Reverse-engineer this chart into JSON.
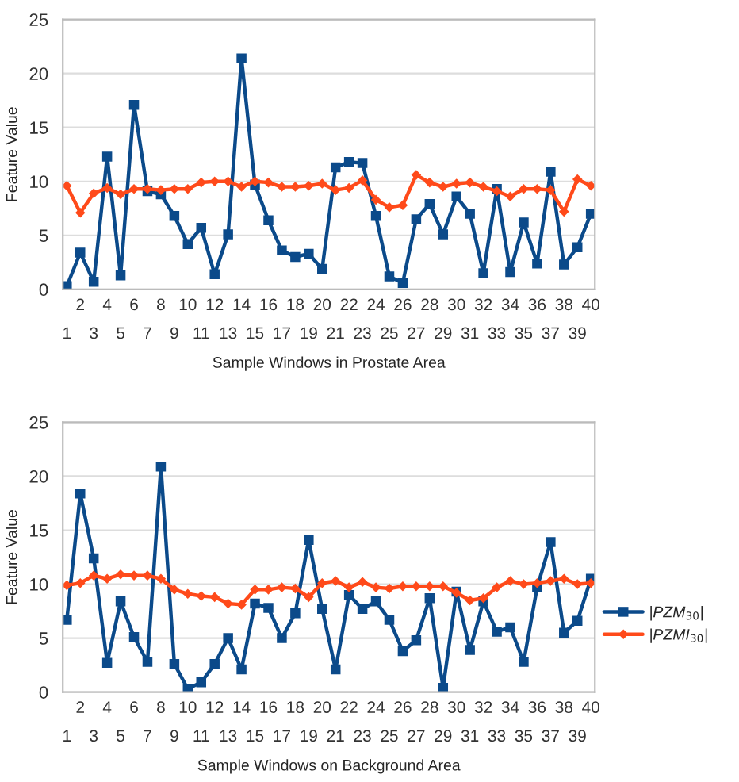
{
  "chart_data": [
    {
      "type": "line",
      "xlabel": "Sample Windows in Prostate Area",
      "ylabel": "Feature Value",
      "categories": [
        "1",
        "2",
        "3",
        "4",
        "5",
        "6",
        "7",
        "8",
        "9",
        "10",
        "11",
        "12",
        "13",
        "14",
        "15",
        "16",
        "17",
        "18",
        "19",
        "20",
        "21",
        "22",
        "23",
        "24",
        "25",
        "26",
        "27",
        "28",
        "29",
        "30",
        "31",
        "32",
        "33",
        "34",
        "35",
        "36",
        "37",
        "38",
        "39",
        "40"
      ],
      "ylim": [
        0,
        25
      ],
      "yticks": [
        0,
        5,
        10,
        15,
        20,
        25
      ],
      "grid": "y",
      "legend": false,
      "series": [
        {
          "color": "#0b4a8a",
          "marker": "square",
          "values": [
            0.3,
            3.4,
            0.7,
            12.3,
            1.3,
            17.1,
            9.1,
            8.8,
            6.8,
            4.2,
            5.7,
            1.4,
            5.1,
            21.4,
            9.7,
            6.4,
            3.6,
            3.0,
            3.3,
            1.9,
            11.3,
            11.8,
            11.7,
            6.8,
            1.2,
            0.6,
            6.5,
            7.9,
            5.1,
            8.6,
            7.0,
            1.5,
            9.3,
            1.6,
            6.2,
            2.4,
            10.9,
            2.3,
            3.9,
            7.0
          ]
        },
        {
          "color": "#ff4a1a",
          "marker": "diamond",
          "values": [
            9.6,
            7.1,
            8.9,
            9.4,
            8.8,
            9.3,
            9.3,
            9.2,
            9.3,
            9.3,
            9.9,
            10.0,
            10.0,
            9.5,
            10.0,
            9.9,
            9.5,
            9.5,
            9.6,
            9.8,
            9.2,
            9.4,
            10.1,
            8.3,
            7.6,
            7.8,
            10.6,
            9.9,
            9.5,
            9.8,
            9.9,
            9.5,
            9.1,
            8.6,
            9.3,
            9.3,
            9.2,
            7.2,
            10.2,
            9.6
          ]
        }
      ]
    },
    {
      "type": "line",
      "xlabel": "Sample Windows on Background Area",
      "ylabel": "Feature Value",
      "categories": [
        "1",
        "2",
        "3",
        "4",
        "5",
        "6",
        "7",
        "8",
        "9",
        "10",
        "11",
        "12",
        "13",
        "14",
        "15",
        "16",
        "17",
        "18",
        "19",
        "20",
        "21",
        "22",
        "23",
        "24",
        "25",
        "26",
        "27",
        "28",
        "29",
        "30",
        "31",
        "32",
        "33",
        "34",
        "35",
        "36",
        "37",
        "38",
        "39",
        "40"
      ],
      "ylim": [
        0,
        25
      ],
      "yticks": [
        0,
        5,
        10,
        15,
        20,
        25
      ],
      "grid": "y",
      "legend": "right",
      "series": [
        {
          "name": "|PZM$_{30}$|",
          "color": "#0b4a8a",
          "marker": "square",
          "values": [
            6.7,
            18.4,
            12.4,
            2.7,
            8.4,
            5.1,
            2.8,
            20.9,
            2.6,
            0.3,
            0.9,
            2.6,
            5.0,
            2.1,
            8.2,
            7.8,
            5.0,
            7.3,
            14.1,
            7.7,
            2.1,
            9.0,
            7.7,
            8.4,
            6.7,
            3.8,
            4.8,
            8.7,
            0.4,
            9.3,
            3.9,
            8.4,
            5.6,
            6.0,
            2.8,
            9.7,
            13.9,
            5.5,
            6.6,
            10.5
          ]
        },
        {
          "name": "|PZMI$_{30}$|",
          "color": "#ff4a1a",
          "marker": "diamond",
          "values": [
            9.9,
            10.1,
            10.8,
            10.5,
            10.9,
            10.8,
            10.8,
            10.5,
            9.5,
            9.1,
            8.9,
            8.8,
            8.2,
            8.1,
            9.5,
            9.5,
            9.7,
            9.6,
            8.8,
            10.1,
            10.3,
            9.7,
            10.2,
            9.7,
            9.6,
            9.8,
            9.8,
            9.8,
            9.8,
            9.2,
            8.5,
            8.7,
            9.7,
            10.3,
            10.0,
            10.1,
            10.3,
            10.5,
            10.0,
            10.1
          ]
        }
      ]
    }
  ]
}
